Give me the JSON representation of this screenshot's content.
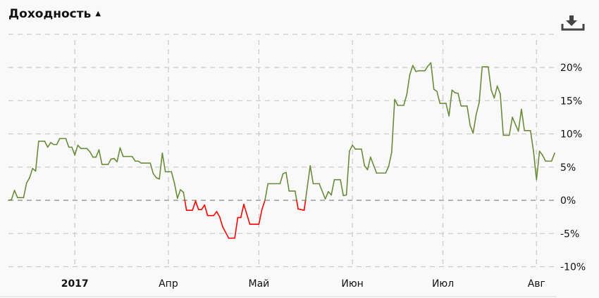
{
  "header": {
    "title": "Доходность",
    "sort_icon": "triangle-up-icon",
    "download_icon": "download-icon"
  },
  "colors": {
    "positive": "#6a8c3a",
    "negative": "#ff0000",
    "grid": "#cccccc",
    "zero_line": "#888888"
  },
  "chart_data": {
    "type": "line",
    "title": "Доходность",
    "xlabel": "",
    "ylabel": "",
    "xlim": [
      "2017-02-07",
      "2017-08-07"
    ],
    "ylim": [
      -10,
      25
    ],
    "grid": true,
    "y_ticks": [
      {
        "value": 20,
        "label": "20%"
      },
      {
        "value": 15,
        "label": "15%"
      },
      {
        "value": 10,
        "label": "10%"
      },
      {
        "value": 5,
        "label": "5%"
      },
      {
        "value": 0,
        "label": "0%"
      },
      {
        "value": -5,
        "label": "-5%"
      },
      {
        "value": -10,
        "label": "-10%"
      }
    ],
    "x_ticks": [
      {
        "date": "2017-03-01",
        "label": "2017",
        "bold": true
      },
      {
        "date": "2017-04-01",
        "label": "Апр"
      },
      {
        "date": "2017-05-01",
        "label": "Май"
      },
      {
        "date": "2017-06-01",
        "label": "Июн"
      },
      {
        "date": "2017-07-01",
        "label": "Июл"
      },
      {
        "date": "2017-08-01",
        "label": "Авг"
      }
    ],
    "series": [
      {
        "points": [
          [
            "2017-02-07",
            0.0
          ],
          [
            "2017-02-08",
            0.1
          ],
          [
            "2017-02-09",
            1.5
          ],
          [
            "2017-02-10",
            0.4
          ],
          [
            "2017-02-12",
            0.4
          ],
          [
            "2017-02-13",
            2.6
          ],
          [
            "2017-02-14",
            3.4
          ],
          [
            "2017-02-15",
            4.8
          ],
          [
            "2017-02-16",
            4.4
          ],
          [
            "2017-02-17",
            8.9
          ],
          [
            "2017-02-19",
            8.9
          ],
          [
            "2017-02-20",
            8.0
          ],
          [
            "2017-02-21",
            8.7
          ],
          [
            "2017-02-22",
            8.4
          ],
          [
            "2017-02-23",
            8.4
          ],
          [
            "2017-02-24",
            9.3
          ],
          [
            "2017-02-26",
            9.3
          ],
          [
            "2017-02-27",
            8.0
          ],
          [
            "2017-02-28",
            8.0
          ],
          [
            "2017-03-01",
            6.8
          ],
          [
            "2017-03-02",
            8.3
          ],
          [
            "2017-03-03",
            7.8
          ],
          [
            "2017-03-05",
            7.8
          ],
          [
            "2017-03-06",
            7.3
          ],
          [
            "2017-03-07",
            6.5
          ],
          [
            "2017-03-08",
            6.5
          ],
          [
            "2017-03-09",
            7.6
          ],
          [
            "2017-03-10",
            5.4
          ],
          [
            "2017-03-12",
            5.4
          ],
          [
            "2017-03-13",
            6.2
          ],
          [
            "2017-03-14",
            6.3
          ],
          [
            "2017-03-15",
            5.8
          ],
          [
            "2017-03-16",
            7.9
          ],
          [
            "2017-03-17",
            6.6
          ],
          [
            "2017-03-20",
            6.6
          ],
          [
            "2017-03-21",
            5.9
          ],
          [
            "2017-03-22",
            5.9
          ],
          [
            "2017-03-23",
            5.6
          ],
          [
            "2017-03-26",
            5.6
          ],
          [
            "2017-03-27",
            4.0
          ],
          [
            "2017-03-28",
            3.4
          ],
          [
            "2017-03-29",
            3.2
          ],
          [
            "2017-03-30",
            7.1
          ],
          [
            "2017-03-31",
            4.3
          ],
          [
            "2017-04-02",
            4.3
          ],
          [
            "2017-04-03",
            2.6
          ],
          [
            "2017-04-04",
            0.3
          ],
          [
            "2017-04-05",
            1.6
          ],
          [
            "2017-04-06",
            1.2
          ],
          [
            "2017-04-07",
            -1.5
          ],
          [
            "2017-04-09",
            -1.5
          ],
          [
            "2017-04-10",
            -0.1
          ],
          [
            "2017-04-11",
            -1.4
          ],
          [
            "2017-04-12",
            -1.4
          ],
          [
            "2017-04-13",
            -0.7
          ],
          [
            "2017-04-14",
            -2.3
          ],
          [
            "2017-04-16",
            -2.3
          ],
          [
            "2017-04-17",
            -1.7
          ],
          [
            "2017-04-18",
            -2.5
          ],
          [
            "2017-04-19",
            -4.0
          ],
          [
            "2017-04-21",
            -5.7
          ],
          [
            "2017-04-23",
            -5.7
          ],
          [
            "2017-04-24",
            -2.6
          ],
          [
            "2017-04-25",
            -2.6
          ],
          [
            "2017-04-26",
            -0.6
          ],
          [
            "2017-04-27",
            -2.1
          ],
          [
            "2017-04-28",
            -3.6
          ],
          [
            "2017-05-01",
            -3.6
          ],
          [
            "2017-05-02",
            -1.4
          ],
          [
            "2017-05-03",
            0.0
          ],
          [
            "2017-05-04",
            2.5
          ],
          [
            "2017-05-08",
            2.5
          ],
          [
            "2017-05-09",
            4.0
          ],
          [
            "2017-05-10",
            4.2
          ],
          [
            "2017-05-11",
            1.4
          ],
          [
            "2017-05-13",
            1.4
          ],
          [
            "2017-05-14",
            -1.3
          ],
          [
            "2017-05-16",
            -1.5
          ],
          [
            "2017-05-18",
            5.2
          ],
          [
            "2017-05-19",
            2.5
          ],
          [
            "2017-05-21",
            2.5
          ],
          [
            "2017-05-23",
            0.2
          ],
          [
            "2017-05-24",
            1.3
          ],
          [
            "2017-05-25",
            0.8
          ],
          [
            "2017-05-26",
            3.1
          ],
          [
            "2017-05-28",
            3.1
          ],
          [
            "2017-05-29",
            0.7
          ],
          [
            "2017-05-30",
            0.8
          ],
          [
            "2017-05-31",
            7.4
          ],
          [
            "2017-06-01",
            8.3
          ],
          [
            "2017-06-02",
            7.7
          ],
          [
            "2017-06-04",
            7.7
          ],
          [
            "2017-06-05",
            5.2
          ],
          [
            "2017-06-06",
            4.6
          ],
          [
            "2017-06-07",
            6.5
          ],
          [
            "2017-06-09",
            4.1
          ],
          [
            "2017-06-12",
            4.1
          ],
          [
            "2017-06-13",
            5.1
          ],
          [
            "2017-06-14",
            7.2
          ],
          [
            "2017-06-15",
            15.2
          ],
          [
            "2017-06-16",
            14.3
          ],
          [
            "2017-06-18",
            14.3
          ],
          [
            "2017-06-19",
            15.9
          ],
          [
            "2017-06-20",
            18.9
          ],
          [
            "2017-06-21",
            20.3
          ],
          [
            "2017-06-22",
            19.4
          ],
          [
            "2017-06-23",
            19.5
          ],
          [
            "2017-06-25",
            19.5
          ],
          [
            "2017-06-26",
            20.2
          ],
          [
            "2017-06-27",
            20.7
          ],
          [
            "2017-06-28",
            16.7
          ],
          [
            "2017-06-29",
            16.4
          ],
          [
            "2017-06-30",
            14.6
          ],
          [
            "2017-07-02",
            14.6
          ],
          [
            "2017-07-03",
            12.7
          ],
          [
            "2017-07-04",
            16.6
          ],
          [
            "2017-07-05",
            16.2
          ],
          [
            "2017-07-06",
            16.1
          ],
          [
            "2017-07-07",
            14.2
          ],
          [
            "2017-07-09",
            14.2
          ],
          [
            "2017-07-10",
            11.3
          ],
          [
            "2017-07-11",
            10.1
          ],
          [
            "2017-07-12",
            12.9
          ],
          [
            "2017-07-13",
            14.7
          ],
          [
            "2017-07-14",
            20.1
          ],
          [
            "2017-07-16",
            20.1
          ],
          [
            "2017-07-17",
            16.6
          ],
          [
            "2017-07-18",
            15.4
          ],
          [
            "2017-07-19",
            17.2
          ],
          [
            "2017-07-20",
            16.0
          ],
          [
            "2017-07-21",
            9.8
          ],
          [
            "2017-07-23",
            9.8
          ],
          [
            "2017-07-24",
            12.5
          ],
          [
            "2017-07-26",
            10.4
          ],
          [
            "2017-07-27",
            13.7
          ],
          [
            "2017-07-28",
            10.5
          ],
          [
            "2017-07-30",
            10.5
          ],
          [
            "2017-07-31",
            7.4
          ],
          [
            "2017-08-01",
            3.1
          ],
          [
            "2017-08-02",
            7.4
          ],
          [
            "2017-08-03",
            6.8
          ],
          [
            "2017-08-04",
            5.9
          ],
          [
            "2017-08-06",
            5.9
          ],
          [
            "2017-08-07",
            7.1
          ]
        ]
      }
    ]
  }
}
